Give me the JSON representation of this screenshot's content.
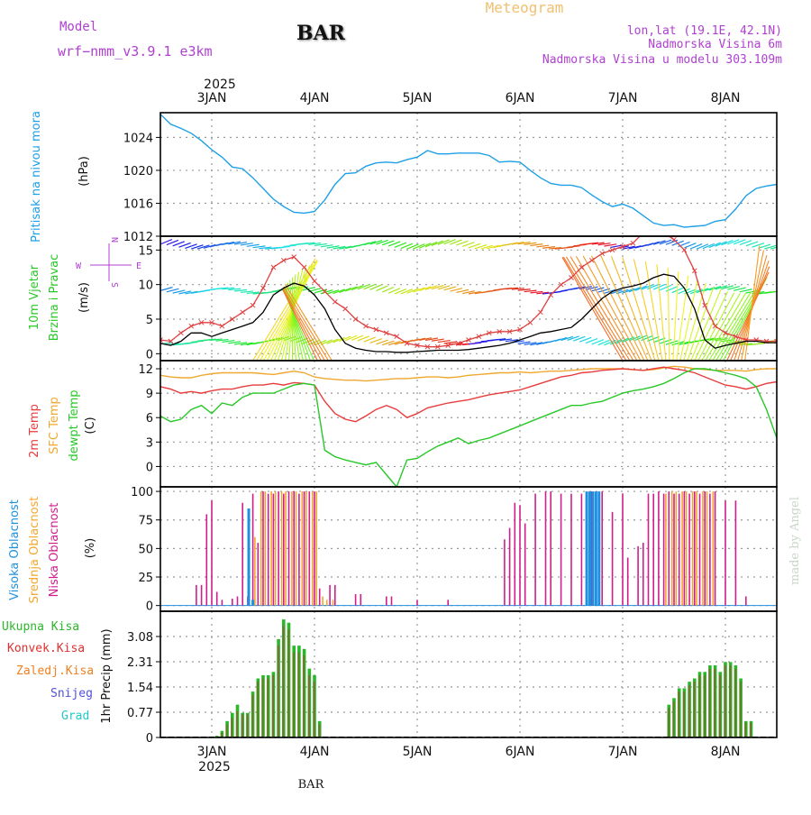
{
  "header": {
    "model_label": "Model",
    "model_name": "wrf−nmm_v3.9.1 e3km",
    "station": "BAR",
    "title": "Meteogram",
    "lonlat": "lon,lat (19.1E, 42.1N)",
    "elevation": "Nadmorska Visina 6m",
    "model_elevation": "Nadmorska Visina u modelu 303.109m",
    "footer_station": "BAR",
    "watermark": "made by Angel"
  },
  "time_axis": {
    "year": "2025",
    "day_labels": [
      "3JAN",
      "4JAN",
      "5JAN",
      "6JAN",
      "7JAN",
      "8JAN"
    ],
    "day_positions": [
      0,
      1,
      2,
      3,
      4,
      5
    ],
    "range_days": [
      -0.5,
      5.5
    ]
  },
  "colors": {
    "pressure": "#1ea0e6",
    "wind_speed": "#000000",
    "gust": "#e04040",
    "temp2m": "#e83c3c",
    "sfc_temp": "#f0a830",
    "dewpoint": "#28c828",
    "cloud_high": "#1e90e0",
    "cloud_mid": "#f0a830",
    "cloud_low": "#d01e8c",
    "precip_total": "#2ab82a",
    "precip_conv": "#e03030",
    "frozen_rain": "#f08020",
    "snow": "#5050e0",
    "graupel": "#20c8c8",
    "label_purple": "#b040d0"
  },
  "panels": {
    "pressure": {
      "ylabel_main": "Pritisak na nivou mora",
      "unit": "(hPa)",
      "ticks": [
        "1012",
        "1016",
        "1020",
        "1024"
      ]
    },
    "wind": {
      "ylabel_main": "10m Vjetar",
      "ylabel_sub": "Brzina i Pravac",
      "unit": "(m/s)",
      "ticks": [
        "0",
        "5",
        "10",
        "15"
      ],
      "compass": {
        "n": "N",
        "s": "S",
        "w": "W",
        "e": "E"
      }
    },
    "temp": {
      "label_2m": "2m Temp",
      "label_sfc": "SFC Temp",
      "label_dew": "dewpt Temp",
      "unit": "(C)",
      "ticks": [
        "0",
        "3",
        "6",
        "9",
        "12"
      ]
    },
    "cloud": {
      "label_high": "Visoka Oblacnost",
      "label_mid": "Srednja Oblacnost",
      "label_low": "Niska Oblacnost",
      "unit": "(%)",
      "ticks": [
        "0",
        "25",
        "50",
        "75",
        "100"
      ]
    },
    "precip": {
      "legend": [
        "Ukupna Kisa",
        "Konvek.Kisa",
        "Zaledj.Kisa",
        "Snijeg",
        "Grad"
      ],
      "ylabel": "1hr Precip (mm)",
      "ticks": [
        "0",
        "0.77",
        "1.54",
        "2.31",
        "3.08"
      ]
    }
  },
  "chart_data": [
    {
      "type": "line",
      "name": "Mean sea level pressure",
      "ylabel": "hPa",
      "ylim": [
        1012,
        1027
      ],
      "x_days": [
        -0.5,
        -0.4,
        -0.3,
        -0.2,
        -0.1,
        0,
        0.1,
        0.2,
        0.3,
        0.4,
        0.5,
        0.6,
        0.7,
        0.8,
        0.9,
        1.0,
        1.1,
        1.2,
        1.3,
        1.4,
        1.5,
        1.6,
        1.7,
        1.8,
        1.9,
        2.0,
        2.1,
        2.2,
        2.3,
        2.4,
        2.5,
        2.6,
        2.7,
        2.8,
        2.9,
        3.0,
        3.1,
        3.2,
        3.3,
        3.4,
        3.5,
        3.6,
        3.7,
        3.8,
        3.9,
        4.0,
        4.1,
        4.2,
        4.3,
        4.4,
        4.5,
        4.6,
        4.7,
        4.8,
        4.9,
        5.0,
        5.1,
        5.2,
        5.3,
        5.4,
        5.5
      ],
      "values": [
        1026.8,
        1025.6,
        1025.1,
        1024.5,
        1023.6,
        1022.5,
        1021.6,
        1020.4,
        1020.2,
        1019.1,
        1017.8,
        1016.5,
        1015.6,
        1014.9,
        1014.8,
        1015.0,
        1016.4,
        1018.3,
        1019.6,
        1019.7,
        1020.5,
        1020.9,
        1021.0,
        1020.9,
        1021.3,
        1021.6,
        1022.4,
        1022.0,
        1022.0,
        1022.1,
        1022.1,
        1022.1,
        1021.8,
        1021.0,
        1021.1,
        1021.0,
        1020.0,
        1019.1,
        1018.4,
        1018.2,
        1018.2,
        1017.9,
        1017.0,
        1016.2,
        1015.6,
        1015.9,
        1015.4,
        1014.5,
        1013.6,
        1013.3,
        1013.4,
        1013.1,
        1013.2,
        1013.3,
        1013.8,
        1014.0,
        1015.3,
        1016.9,
        1017.8,
        1018.1,
        1018.3
      ]
    },
    {
      "type": "line",
      "name": "10m wind speed and gusts",
      "ylabel": "m/s",
      "ylim": [
        -1,
        17
      ],
      "x_days": [
        -0.5,
        -0.4,
        -0.3,
        -0.2,
        -0.1,
        0,
        0.1,
        0.2,
        0.3,
        0.4,
        0.5,
        0.6,
        0.7,
        0.8,
        0.9,
        1.0,
        1.1,
        1.2,
        1.3,
        1.4,
        1.5,
        1.6,
        1.7,
        1.8,
        1.9,
        2.0,
        2.1,
        2.2,
        2.3,
        2.4,
        2.5,
        2.6,
        2.7,
        2.8,
        2.9,
        3.0,
        3.1,
        3.2,
        3.3,
        3.4,
        3.5,
        3.6,
        3.7,
        3.8,
        3.9,
        4.0,
        4.1,
        4.2,
        4.3,
        4.4,
        4.5,
        4.6,
        4.7,
        4.8,
        4.9,
        5.0,
        5.1,
        5.2,
        5.3,
        5.4,
        5.5
      ],
      "series": [
        {
          "name": "wind speed",
          "values": [
            1.5,
            1.2,
            1.8,
            3.0,
            3.0,
            2.5,
            3.0,
            3.5,
            4.0,
            4.5,
            6.0,
            8.5,
            9.5,
            10.2,
            9.8,
            8.5,
            6.5,
            3.5,
            1.5,
            0.8,
            0.5,
            0.3,
            0.3,
            0.2,
            0.2,
            0.3,
            0.4,
            0.5,
            0.5,
            0.5,
            0.6,
            0.8,
            1.0,
            1.2,
            1.5,
            2.0,
            2.5,
            3.0,
            3.2,
            3.5,
            3.8,
            5.0,
            6.5,
            8.0,
            9.0,
            9.5,
            9.8,
            10.2,
            11.0,
            11.5,
            11.2,
            9.5,
            6.5,
            2.0,
            0.8,
            1.2,
            1.5,
            1.8,
            1.8,
            1.6,
            1.6
          ]
        },
        {
          "name": "gust",
          "values": [
            2.0,
            1.8,
            3.0,
            4.0,
            4.5,
            4.5,
            4.0,
            5.0,
            6.0,
            7.0,
            9.5,
            12.5,
            13.5,
            14.0,
            12.5,
            10.5,
            9.0,
            7.5,
            6.5,
            5.0,
            4.0,
            3.5,
            3.0,
            2.5,
            1.5,
            1.2,
            1.0,
            1.0,
            1.2,
            1.5,
            2.0,
            2.5,
            3.0,
            3.2,
            3.2,
            3.5,
            4.5,
            6.0,
            8.5,
            10.0,
            11.0,
            12.5,
            13.5,
            14.5,
            15.0,
            15.5,
            16.0,
            17.5,
            17.8,
            17.5,
            16.5,
            15.0,
            12.0,
            7.0,
            4.0,
            3.0,
            2.5,
            2.0,
            2.0,
            1.8,
            1.8
          ]
        }
      ]
    },
    {
      "type": "line",
      "name": "Temperatures",
      "ylabel": "C",
      "ylim": [
        -2.5,
        13
      ],
      "x_days": [
        -0.5,
        -0.4,
        -0.3,
        -0.2,
        -0.1,
        0,
        0.1,
        0.2,
        0.3,
        0.4,
        0.5,
        0.6,
        0.7,
        0.8,
        0.9,
        1.0,
        1.1,
        1.2,
        1.3,
        1.4,
        1.5,
        1.6,
        1.7,
        1.8,
        1.9,
        2.0,
        2.1,
        2.2,
        2.3,
        2.4,
        2.5,
        2.6,
        2.7,
        2.8,
        2.9,
        3.0,
        3.1,
        3.2,
        3.3,
        3.4,
        3.5,
        3.6,
        3.7,
        3.8,
        3.9,
        4.0,
        4.1,
        4.2,
        4.3,
        4.4,
        4.5,
        4.6,
        4.7,
        4.8,
        4.9,
        5.0,
        5.1,
        5.2,
        5.3,
        5.4,
        5.5
      ],
      "series": [
        {
          "name": "2m Temp",
          "values": [
            9.8,
            9.5,
            9.0,
            9.2,
            9.0,
            9.3,
            9.5,
            9.5,
            9.8,
            10.0,
            10.0,
            10.2,
            10.0,
            10.3,
            10.2,
            10.0,
            8.0,
            6.5,
            5.8,
            5.5,
            6.2,
            7.0,
            7.5,
            7.0,
            6.0,
            6.5,
            7.2,
            7.5,
            7.8,
            8.0,
            8.2,
            8.5,
            8.8,
            9.0,
            9.2,
            9.4,
            9.8,
            10.2,
            10.6,
            11.0,
            11.2,
            11.5,
            11.6,
            11.8,
            11.9,
            12.0,
            11.9,
            11.8,
            12.0,
            12.2,
            12.0,
            11.8,
            11.5,
            11.0,
            10.5,
            10.0,
            9.8,
            9.5,
            9.8,
            10.2,
            10.4
          ]
        },
        {
          "name": "SFC Temp",
          "values": [
            11.2,
            11.0,
            10.9,
            10.9,
            11.2,
            11.4,
            11.5,
            11.5,
            11.5,
            11.5,
            11.4,
            11.3,
            11.5,
            11.7,
            11.5,
            11.0,
            10.8,
            10.7,
            10.6,
            10.6,
            10.5,
            10.6,
            10.7,
            10.8,
            10.8,
            10.9,
            11.0,
            11.0,
            10.9,
            11.0,
            11.2,
            11.3,
            11.4,
            11.5,
            11.5,
            11.6,
            11.5,
            11.6,
            11.7,
            11.7,
            11.8,
            11.9,
            12.0,
            12.0,
            12.0,
            12.0,
            11.9,
            11.8,
            11.9,
            12.1,
            12.3,
            12.2,
            12.0,
            11.9,
            11.8,
            11.8,
            11.8,
            11.7,
            11.9,
            12.0,
            12.0
          ]
        },
        {
          "name": "dewpt Temp",
          "values": [
            6.2,
            5.5,
            5.8,
            7.0,
            7.5,
            6.5,
            7.8,
            7.5,
            8.5,
            9.0,
            9.0,
            9.0,
            9.5,
            10.0,
            10.2,
            10.0,
            2.0,
            1.2,
            0.8,
            0.5,
            0.2,
            0.5,
            -1.0,
            -2.5,
            0.8,
            1.0,
            1.8,
            2.5,
            3.0,
            3.5,
            2.8,
            3.2,
            3.5,
            4.0,
            4.5,
            5.0,
            5.5,
            6.0,
            6.5,
            7.0,
            7.5,
            7.5,
            7.8,
            8.0,
            8.5,
            9.0,
            9.3,
            9.5,
            9.8,
            10.2,
            10.8,
            11.5,
            12.0,
            12.0,
            11.8,
            11.5,
            11.2,
            10.8,
            9.8,
            7.0,
            3.5
          ]
        }
      ]
    },
    {
      "type": "bar",
      "name": "Cloud cover",
      "ylabel": "%",
      "ylim": [
        0,
        100
      ],
      "series": [
        {
          "name": "Niska Oblacnost",
          "x_days": [
            -0.15,
            -0.1,
            -0.05,
            0.0,
            0.05,
            0.1,
            0.2,
            0.25,
            0.3,
            0.35,
            0.4,
            0.45,
            0.5,
            0.55,
            0.6,
            0.65,
            0.7,
            0.75,
            0.8,
            0.85,
            0.9,
            0.95,
            1.0,
            1.05,
            1.15,
            1.2,
            1.4,
            1.45,
            1.7,
            1.75,
            2.0,
            2.3,
            2.85,
            2.9,
            2.95,
            3.0,
            3.05,
            3.15,
            3.25,
            3.3,
            3.4,
            3.5,
            3.6,
            3.7,
            3.8,
            3.9,
            4.0,
            4.05,
            4.15,
            4.2,
            4.25,
            4.3,
            4.35,
            4.4,
            4.45,
            4.5,
            4.55,
            4.6,
            4.65,
            4.7,
            4.75,
            4.8,
            4.85,
            4.9,
            5.0,
            5.1,
            5.2
          ],
          "values": [
            18,
            18,
            80,
            92,
            12,
            5,
            6,
            8,
            90,
            8,
            98,
            55,
            100,
            98,
            98,
            100,
            98,
            100,
            100,
            98,
            100,
            100,
            100,
            15,
            18,
            18,
            10,
            10,
            8,
            8,
            5,
            5,
            58,
            68,
            90,
            88,
            72,
            98,
            100,
            100,
            98,
            98,
            98,
            100,
            100,
            82,
            98,
            42,
            52,
            55,
            98,
            98,
            100,
            98,
            100,
            98,
            98,
            100,
            98,
            100,
            98,
            100,
            98,
            100,
            92,
            92,
            8
          ]
        },
        {
          "name": "Srednja Oblacnost",
          "x_days": [
            0.42,
            0.48,
            0.52,
            0.58,
            0.62,
            0.68,
            0.72,
            0.78,
            0.82,
            0.88,
            0.92,
            0.98,
            1.02,
            1.08,
            1.12,
            1.18,
            4.42,
            4.48,
            4.52,
            4.58,
            4.62,
            4.68,
            4.72,
            4.78,
            4.82,
            4.88
          ],
          "values": [
            60,
            100,
            100,
            100,
            100,
            100,
            100,
            100,
            100,
            100,
            100,
            100,
            100,
            8,
            5,
            5,
            98,
            100,
            100,
            100,
            100,
            100,
            100,
            100,
            100,
            100
          ]
        },
        {
          "name": "Visoka Oblacnost",
          "x_days": [
            0.36,
            0.4,
            3.65,
            3.68,
            3.71,
            3.74,
            3.77
          ],
          "values": [
            85,
            5,
            100,
            100,
            100,
            100,
            100
          ]
        }
      ]
    },
    {
      "type": "bar",
      "name": "1hr Precipitation",
      "ylabel": "mm",
      "ylim": [
        0,
        3.85
      ],
      "x_days": [
        0.05,
        0.1,
        0.15,
        0.2,
        0.25,
        0.3,
        0.35,
        0.4,
        0.45,
        0.5,
        0.55,
        0.6,
        0.65,
        0.7,
        0.75,
        0.8,
        0.85,
        0.9,
        0.95,
        1.0,
        1.05,
        4.45,
        4.5,
        4.55,
        4.6,
        4.65,
        4.7,
        4.75,
        4.8,
        4.85,
        4.9,
        4.95,
        5.0,
        5.05,
        5.1,
        5.15,
        5.2,
        5.25
      ],
      "series": [
        {
          "name": "Ukupna Kisa",
          "values": [
            0.05,
            0.2,
            0.5,
            0.75,
            1.0,
            0.75,
            0.75,
            1.4,
            1.8,
            1.9,
            1.9,
            2.0,
            3.0,
            3.6,
            3.5,
            2.8,
            2.8,
            2.7,
            2.1,
            1.9,
            0.5,
            1.0,
            1.2,
            1.5,
            1.5,
            1.7,
            1.8,
            2.0,
            2.0,
            2.2,
            2.2,
            2.0,
            2.3,
            2.3,
            2.2,
            1.8,
            0.5,
            0.5
          ]
        },
        {
          "name": "Konvek.Kisa",
          "values": [
            0.03,
            0.15,
            0.4,
            0.6,
            0.8,
            0.7,
            0.7,
            1.3,
            1.7,
            1.8,
            1.8,
            1.9,
            2.8,
            3.4,
            3.3,
            2.6,
            2.6,
            2.5,
            1.9,
            1.7,
            0.4,
            0.9,
            1.1,
            1.4,
            1.4,
            1.6,
            1.7,
            1.9,
            1.9,
            2.1,
            2.1,
            1.9,
            2.2,
            2.2,
            2.1,
            1.7,
            0.45,
            0.45
          ]
        }
      ]
    }
  ]
}
